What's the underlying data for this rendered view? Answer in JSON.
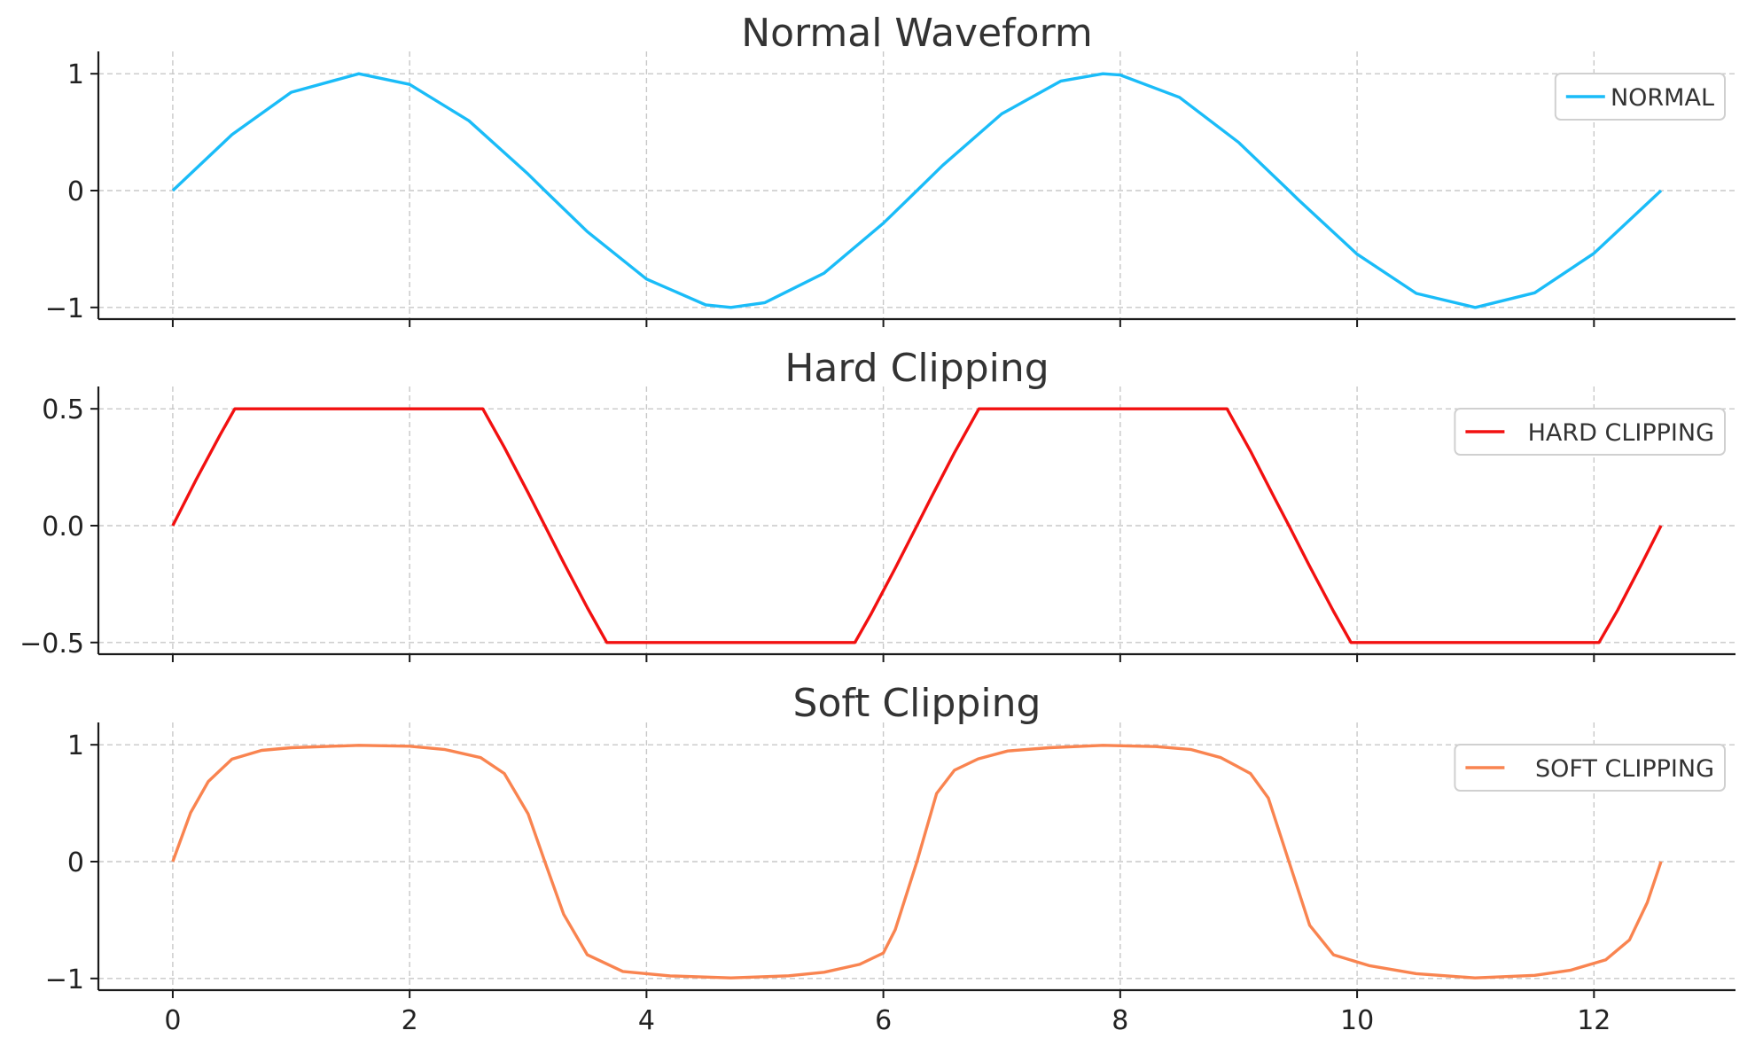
{
  "chart_data": [
    {
      "type": "line",
      "title": "Normal Waveform",
      "xlabel": "",
      "ylabel": "",
      "xlim": [
        -0.628,
        13.195
      ],
      "ylim": [
        -1.1,
        1.1
      ],
      "x_ticks": [
        0,
        2,
        4,
        6,
        8,
        10,
        12
      ],
      "x_tick_labels": [],
      "y_ticks": [
        -1,
        0,
        1
      ],
      "y_tick_labels": [
        "−1",
        "0",
        "1"
      ],
      "grid": true,
      "legend_position": "top-right",
      "series": [
        {
          "name": "NORMAL",
          "color": "#1ABCF8",
          "x": [
            0,
            0.5,
            1,
            1.5708,
            2,
            2.5,
            3,
            3.1416,
            3.5,
            4,
            4.5,
            4.7124,
            5,
            5.5,
            6,
            6.2832,
            6.5,
            7,
            7.5,
            7.854,
            8,
            8.5,
            9,
            9.4248,
            9.5,
            10,
            10.5,
            10.9956,
            11,
            11.5,
            12,
            12.5664
          ],
          "y": [
            0,
            0.479,
            0.841,
            1,
            0.909,
            0.598,
            0.141,
            0,
            -0.351,
            -0.757,
            -0.978,
            -1,
            -0.959,
            -0.706,
            -0.279,
            0,
            0.215,
            0.657,
            0.938,
            1,
            0.989,
            0.798,
            0.412,
            0,
            -0.075,
            -0.544,
            -0.88,
            -1,
            -1,
            -0.875,
            -0.537,
            0
          ]
        }
      ]
    },
    {
      "type": "line",
      "title": "Hard Clipping",
      "xlabel": "",
      "ylabel": "",
      "xlim": [
        -0.628,
        13.195
      ],
      "ylim": [
        -0.55,
        0.55
      ],
      "x_ticks": [
        0,
        2,
        4,
        6,
        8,
        10,
        12
      ],
      "x_tick_labels": [],
      "y_ticks": [
        -0.5,
        0,
        0.5
      ],
      "y_tick_labels": [
        "−0.5",
        "0.0",
        "0.5"
      ],
      "grid": true,
      "legend_position": "top-right",
      "series": [
        {
          "name": "HARD CLIPPING",
          "color": "#F21010",
          "x": [
            0,
            0.2,
            0.4,
            0.5236,
            2.618,
            2.8,
            3,
            3.1416,
            3.3,
            3.5,
            3.665,
            5.7596,
            5.9,
            6.1,
            6.2832,
            6.4,
            6.6,
            6.8068,
            8.9012,
            9.1,
            9.3,
            9.4248,
            9.6,
            9.8,
            9.9484,
            12.0428,
            12.2,
            12.4,
            12.5664
          ],
          "y": [
            0,
            0.199,
            0.389,
            0.5,
            0.5,
            0.335,
            0.141,
            0,
            -0.158,
            -0.351,
            -0.5,
            -0.5,
            -0.374,
            -0.182,
            0,
            0.117,
            0.312,
            0.5,
            0.5,
            0.319,
            0.121,
            0,
            -0.174,
            -0.366,
            -0.5,
            -0.5,
            -0.361,
            -0.166,
            0
          ]
        }
      ]
    },
    {
      "type": "line",
      "title": "Soft Clipping",
      "xlabel": "",
      "ylabel": "",
      "xlim": [
        -0.628,
        13.195
      ],
      "ylim": [
        -1.1,
        1.1
      ],
      "x_ticks": [
        0,
        2,
        4,
        6,
        8,
        10,
        12
      ],
      "x_tick_labels": [
        "0",
        "2",
        "4",
        "6",
        "8",
        "10",
        "12"
      ],
      "y_ticks": [
        -1,
        0,
        1
      ],
      "y_tick_labels": [
        "−1",
        "0",
        "1"
      ],
      "grid": true,
      "legend_position": "top-right",
      "series": [
        {
          "name": "SOFT CLIPPING",
          "color": "#F98450",
          "x": [
            0,
            0.15,
            0.3,
            0.5,
            0.75,
            1,
            1.5708,
            2,
            2.3,
            2.6,
            2.8,
            3,
            3.1416,
            3.3,
            3.5,
            3.8,
            4.2,
            4.7124,
            5.2,
            5.5,
            5.8,
            6,
            6.1,
            6.2832,
            6.45,
            6.6,
            6.8,
            7.05,
            7.4,
            7.854,
            8.3,
            8.6,
            8.85,
            9.1,
            9.25,
            9.4248,
            9.6,
            9.8,
            10.1,
            10.5,
            10.9956,
            11.5,
            11.8,
            12.1,
            12.3,
            12.45,
            12.5664
          ],
          "y": [
            0,
            0.418,
            0.686,
            0.877,
            0.952,
            0.975,
            0.995,
            0.988,
            0.959,
            0.89,
            0.754,
            0.409,
            0,
            -0.45,
            -0.797,
            -0.94,
            -0.978,
            -0.995,
            -0.977,
            -0.947,
            -0.879,
            -0.782,
            -0.583,
            0,
            0.583,
            0.782,
            0.879,
            0.947,
            0.975,
            0.995,
            0.985,
            0.959,
            0.89,
            0.754,
            0.545,
            0,
            -0.545,
            -0.797,
            -0.89,
            -0.959,
            -0.995,
            -0.973,
            -0.93,
            -0.84,
            -0.67,
            -0.35,
            0
          ]
        }
      ]
    }
  ]
}
